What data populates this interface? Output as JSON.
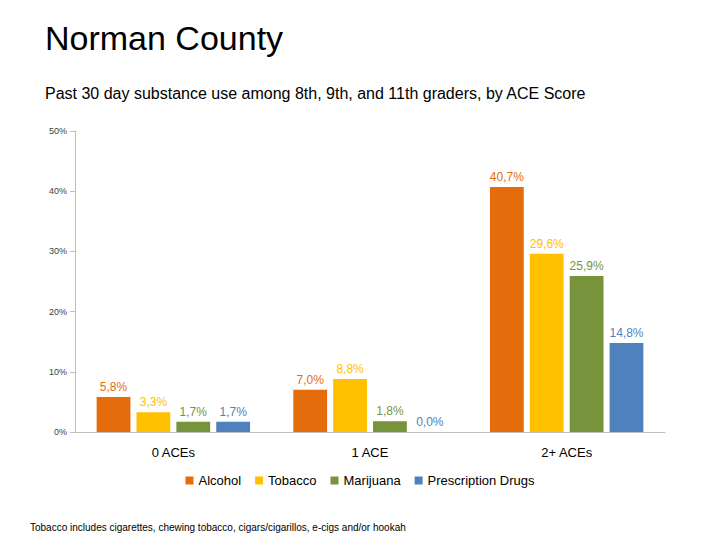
{
  "chart_data": {
    "type": "bar",
    "title": "Norman County",
    "subtitle": "Past 30 day substance use among 8th, 9th, and 11th graders, by ACE Score",
    "annotations": [
      "Tobacco includes cigarettes, chewing tobacco, cigars/cigarillos, e-cigs and/or hookah"
    ],
    "categories": [
      "0 ACEs",
      "1 ACE",
      "2+ ACEs"
    ],
    "series": [
      {
        "name": "Alcohol",
        "color": "#E46C0A",
        "values": [
          5.8,
          7.0,
          40.7
        ],
        "value_labels": [
          "5,8%",
          "7,0%",
          "40,7%"
        ]
      },
      {
        "name": "Tobacco",
        "color": "#FFC000",
        "values": [
          3.3,
          8.8,
          29.6
        ],
        "value_labels": [
          "3,3%",
          "8,8%",
          "29,6%"
        ]
      },
      {
        "name": "Marijuana",
        "color": "#77933C",
        "values": [
          1.7,
          1.8,
          25.9
        ],
        "value_labels": [
          "1,7%",
          "1,8%",
          "25,9%"
        ]
      },
      {
        "name": "Prescription Drugs",
        "color": "#4F81BD",
        "values": [
          1.7,
          0.0,
          14.8
        ],
        "value_labels": [
          "1,7%",
          "0,0%",
          "14,8%"
        ]
      }
    ],
    "ylim": [
      0,
      50
    ],
    "yticks": [
      {
        "value": 0,
        "label": "0%"
      },
      {
        "value": 10,
        "label": "10%"
      },
      {
        "value": 20,
        "label": "20%"
      },
      {
        "value": 30,
        "label": "30%"
      },
      {
        "value": 40,
        "label": "40%"
      },
      {
        "value": 50,
        "label": "50%"
      }
    ],
    "grid": false,
    "legend": "bottom",
    "data_labels": true
  }
}
